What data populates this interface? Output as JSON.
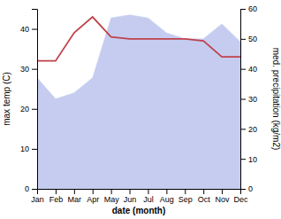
{
  "chart_data": {
    "type": "line",
    "categories": [
      "Jan",
      "Feb",
      "Mar",
      "Apr",
      "May",
      "Jun",
      "Jul",
      "Aug",
      "Sep",
      "Oct",
      "Nov",
      "Dec"
    ],
    "xlabel": "date (month)",
    "ylabel": "max temp (C)",
    "y2label": "med. precipitation (kg/m2)",
    "ylim": [
      0,
      45
    ],
    "yticks": [
      0,
      10,
      20,
      30,
      40
    ],
    "y2lim": [
      0,
      60
    ],
    "y2ticks": [
      0,
      10,
      20,
      30,
      40,
      50,
      60
    ],
    "series": [
      {
        "type": "area",
        "axis": "y2",
        "color": "#c5ccf0",
        "values": [
          37,
          30,
          32,
          37,
          57,
          58,
          57,
          52,
          50,
          50,
          55,
          49
        ]
      },
      {
        "type": "line",
        "color": "#c0424a",
        "values": [
          32,
          32,
          39,
          43,
          38,
          37.5,
          37.5,
          37.5,
          37.5,
          37,
          33,
          33
        ]
      }
    ]
  }
}
